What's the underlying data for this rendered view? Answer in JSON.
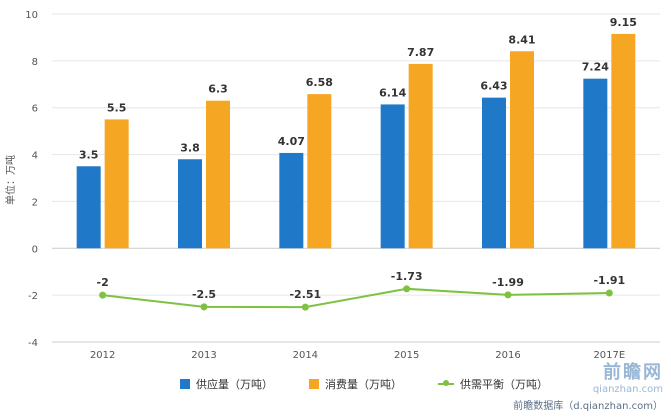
{
  "chart_data": {
    "type": "bar",
    "categories": [
      "2012",
      "2013",
      "2014",
      "2015",
      "2016",
      "2017E"
    ],
    "series": [
      {
        "name": "供应量（万吨）",
        "type": "bar",
        "color": "#1f78c8",
        "values": [
          3.5,
          3.8,
          4.07,
          6.14,
          6.43,
          7.24
        ]
      },
      {
        "name": "消费量（万吨）",
        "type": "bar",
        "color": "#f5a623",
        "values": [
          5.5,
          6.3,
          6.58,
          7.87,
          8.41,
          9.15
        ]
      },
      {
        "name": "供需平衡（万吨）",
        "type": "line",
        "color": "#7dc242",
        "values": [
          -2,
          -2.5,
          -2.51,
          -1.73,
          -1.99,
          -1.91
        ]
      }
    ],
    "ylabel": "单位：万吨",
    "ylim": [
      -4,
      10
    ],
    "yticks": [
      -4,
      -2,
      0,
      2,
      4,
      6,
      8,
      10
    ],
    "grid": true,
    "legend": "bottom"
  },
  "watermark": {
    "logo": "前瞻网",
    "site": "qianzhan.com",
    "source": "前瞻数据库（d.qianzhan.com）"
  }
}
